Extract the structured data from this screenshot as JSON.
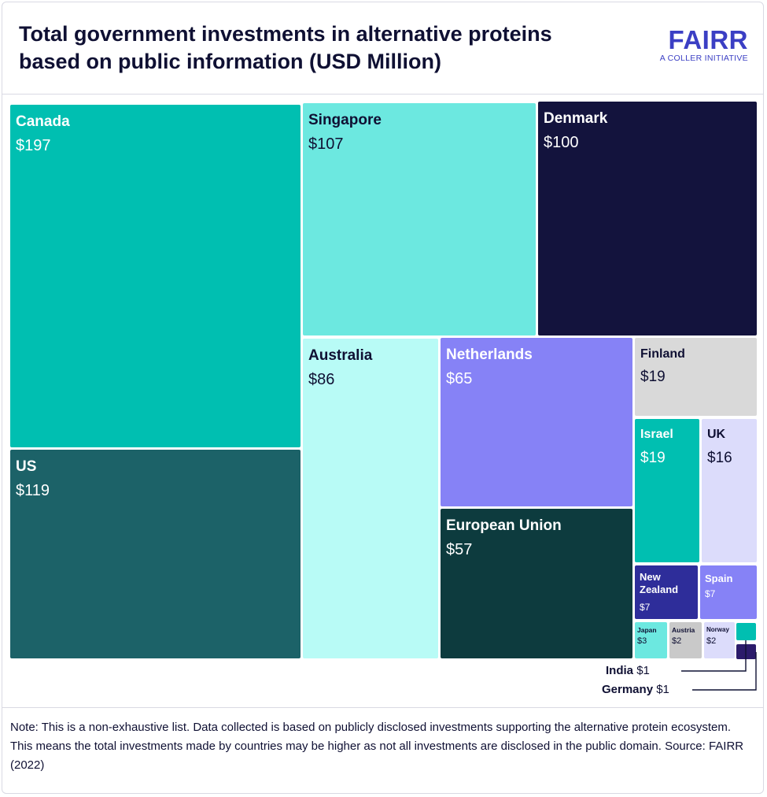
{
  "header": {
    "title": "Total government investments in alternative proteins based on public information (USD Million)",
    "brand_name": "FAIRR",
    "brand_tagline": "A COLLER INITIATIVE",
    "brand_color": "#3b3fc4"
  },
  "chart_data": {
    "type": "treemap",
    "title": "Total government investments in alternative proteins based on public information (USD Million)",
    "unit": "USD Million",
    "categories": [
      "Canada",
      "US",
      "Singapore",
      "Denmark",
      "Australia",
      "Netherlands",
      "European Union",
      "Finland",
      "Israel",
      "UK",
      "New Zealand",
      "Spain",
      "Japan",
      "Austria",
      "Norway",
      "India",
      "Germany"
    ],
    "values": [
      197,
      119,
      107,
      100,
      86,
      65,
      57,
      19,
      19,
      16,
      7,
      7,
      3,
      2,
      2,
      1,
      1
    ],
    "items": [
      {
        "name": "Canada",
        "label": "$197",
        "value": 197,
        "color": "#00bfb1",
        "text_color": "#ffffff"
      },
      {
        "name": "US",
        "label": "$119",
        "value": 119,
        "color": "#1c6268",
        "text_color": "#ffffff"
      },
      {
        "name": "Singapore",
        "label": "$107",
        "value": 107,
        "color": "#6ce8e0",
        "text_color": "#0f1033"
      },
      {
        "name": "Denmark",
        "label": "$100",
        "value": 100,
        "color": "#13133d",
        "text_color": "#ffffff"
      },
      {
        "name": "Australia",
        "label": "$86",
        "value": 86,
        "color": "#b8fbf6",
        "text_color": "#0f1033"
      },
      {
        "name": "Netherlands",
        "label": "$65",
        "value": 65,
        "color": "#8682f6",
        "text_color": "#ffffff"
      },
      {
        "name": "European Union",
        "label": "$57",
        "value": 57,
        "color": "#0d3b3e",
        "text_color": "#ffffff"
      },
      {
        "name": "Finland",
        "label": "$19",
        "value": 19,
        "color": "#d9d9d9",
        "text_color": "#0f1033"
      },
      {
        "name": "Israel",
        "label": "$19",
        "value": 19,
        "color": "#00bfb1",
        "text_color": "#ffffff"
      },
      {
        "name": "UK",
        "label": "$16",
        "value": 16,
        "color": "#dcdcfb",
        "text_color": "#0f1033"
      },
      {
        "name": "New Zealand",
        "label": "$7",
        "value": 7,
        "color": "#2e2d9a",
        "text_color": "#ffffff"
      },
      {
        "name": "Spain",
        "label": "$7",
        "value": 7,
        "color": "#8682f6",
        "text_color": "#ffffff"
      },
      {
        "name": "Japan",
        "label": "$3",
        "value": 3,
        "color": "#6ce8e0",
        "text_color": "#0f1033"
      },
      {
        "name": "Austria",
        "label": "$2",
        "value": 2,
        "color": "#c9c9c9",
        "text_color": "#0f1033"
      },
      {
        "name": "Norway",
        "label": "$2",
        "value": 2,
        "color": "#dcdcfb",
        "text_color": "#0f1033"
      },
      {
        "name": "India",
        "label": "$1",
        "value": 1,
        "color": "#00bfb1",
        "text_color": "#0f1033"
      },
      {
        "name": "Germany",
        "label": "$1",
        "value": 1,
        "color": "#2b1b6b",
        "text_color": "#0f1033"
      }
    ],
    "callouts": [
      {
        "name": "India",
        "label": "$1"
      },
      {
        "name": "Germany",
        "label": "$1"
      }
    ]
  },
  "footer": {
    "note": "Note: This is a non-exhaustive list. Data collected is based on publicly disclosed investments supporting the alternative protein ecosystem. This means the total investments made by countries may be higher as not all investments are disclosed in the public domain. Source: FAIRR (2022)"
  }
}
